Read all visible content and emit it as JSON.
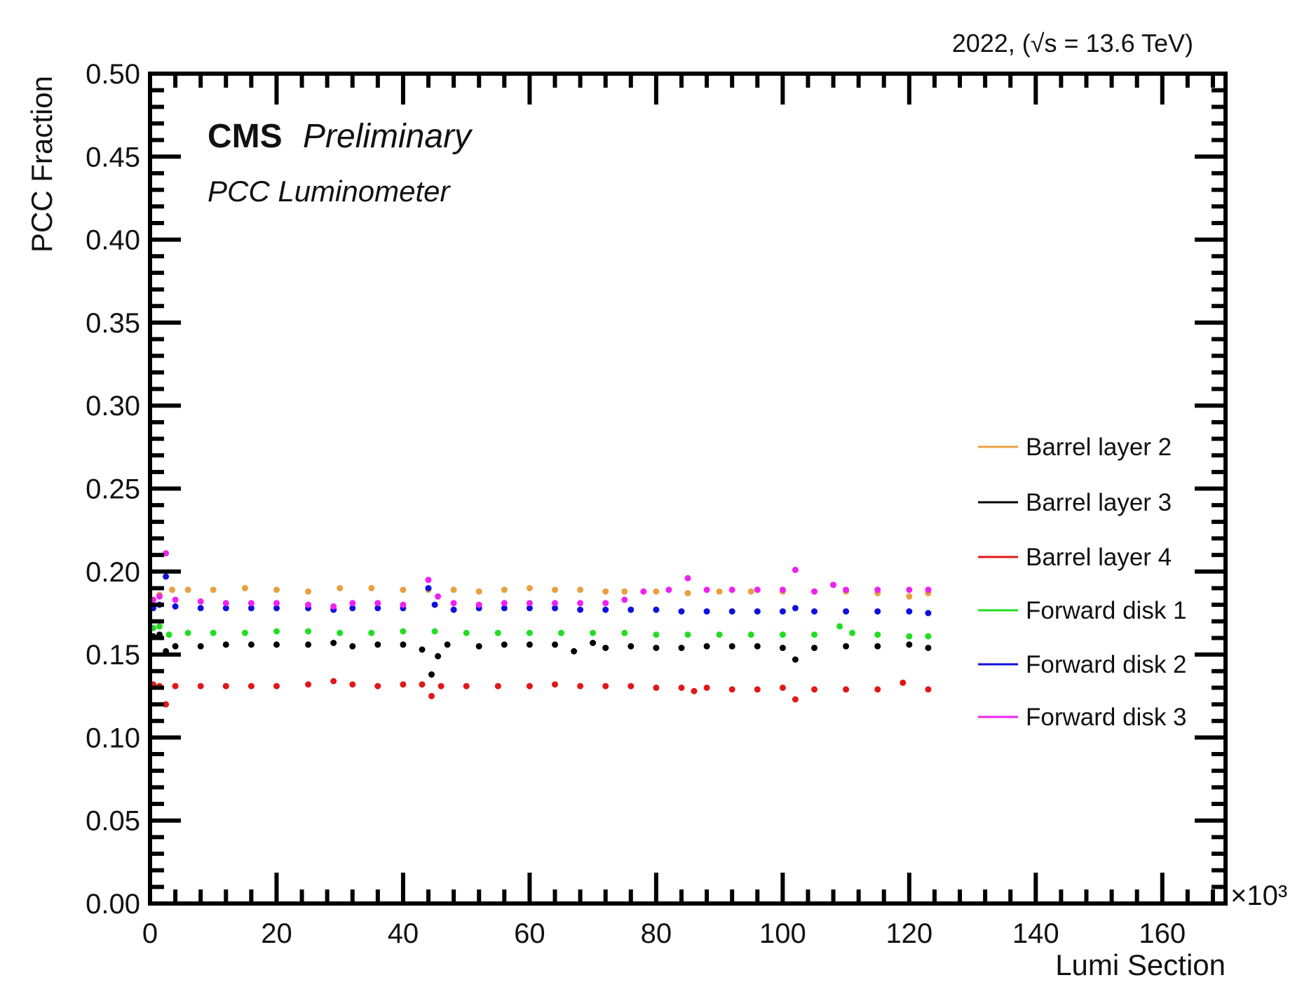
{
  "chart_data": {
    "type": "scatter",
    "energy_label": "2022, (√s = 13.6 TeV)",
    "experiment": "CMS",
    "status": "Preliminary",
    "subtitle": "PCC Luminometer",
    "xlabel": "Lumi Section",
    "ylabel": "PCC Fraction",
    "x_multiplier": "×10³",
    "xlim": [
      0,
      170
    ],
    "ylim": [
      0,
      0.5
    ],
    "x_ticks": [
      0,
      20,
      40,
      60,
      80,
      100,
      120,
      140,
      160
    ],
    "x_tick_labels": [
      "0",
      "20",
      "40",
      "60",
      "80",
      "100",
      "120",
      "140",
      "160"
    ],
    "y_ticks": [
      0,
      0.05,
      0.1,
      0.15,
      0.2,
      0.25,
      0.3,
      0.35,
      0.4,
      0.45,
      0.5
    ],
    "y_tick_labels": [
      "0.00",
      "0.05",
      "0.10",
      "0.15",
      "0.20",
      "0.25",
      "0.30",
      "0.35",
      "0.40",
      "0.45",
      "0.50"
    ],
    "grid": false,
    "legend_position": "right",
    "series": [
      {
        "name": "Barrel layer 2",
        "color": "#e8a040",
        "points": [
          [
            0.5,
            0.183
          ],
          [
            1.5,
            0.186
          ],
          [
            3.5,
            0.189
          ],
          [
            6,
            0.189
          ],
          [
            10,
            0.189
          ],
          [
            15,
            0.19
          ],
          [
            20,
            0.189
          ],
          [
            25,
            0.188
          ],
          [
            30,
            0.19
          ],
          [
            35,
            0.19
          ],
          [
            40,
            0.189
          ],
          [
            44,
            0.189
          ],
          [
            48,
            0.189
          ],
          [
            52,
            0.188
          ],
          [
            56,
            0.189
          ],
          [
            60,
            0.19
          ],
          [
            64,
            0.189
          ],
          [
            68,
            0.189
          ],
          [
            72,
            0.188
          ],
          [
            75,
            0.188
          ],
          [
            80,
            0.188
          ],
          [
            85,
            0.187
          ],
          [
            90,
            0.188
          ],
          [
            95,
            0.188
          ],
          [
            100,
            0.188
          ],
          [
            105,
            0.188
          ],
          [
            110,
            0.188
          ],
          [
            115,
            0.187
          ],
          [
            120,
            0.185
          ],
          [
            123,
            0.187
          ]
        ]
      },
      {
        "name": "Barrel layer 3",
        "color": "#000000",
        "points": [
          [
            0.5,
            0.161
          ],
          [
            1.5,
            0.162
          ],
          [
            2.5,
            0.152
          ],
          [
            4,
            0.155
          ],
          [
            8,
            0.155
          ],
          [
            12,
            0.156
          ],
          [
            16,
            0.156
          ],
          [
            20,
            0.156
          ],
          [
            25,
            0.156
          ],
          [
            29,
            0.157
          ],
          [
            32,
            0.155
          ],
          [
            36,
            0.156
          ],
          [
            40,
            0.156
          ],
          [
            43,
            0.153
          ],
          [
            44.5,
            0.138
          ],
          [
            45.5,
            0.149
          ],
          [
            47,
            0.156
          ],
          [
            52,
            0.155
          ],
          [
            56,
            0.156
          ],
          [
            60,
            0.156
          ],
          [
            64,
            0.156
          ],
          [
            67,
            0.152
          ],
          [
            70,
            0.157
          ],
          [
            72,
            0.154
          ],
          [
            76,
            0.155
          ],
          [
            80,
            0.154
          ],
          [
            84,
            0.154
          ],
          [
            88,
            0.155
          ],
          [
            92,
            0.155
          ],
          [
            96,
            0.155
          ],
          [
            100,
            0.154
          ],
          [
            102,
            0.147
          ],
          [
            105,
            0.154
          ],
          [
            110,
            0.155
          ],
          [
            115,
            0.155
          ],
          [
            120,
            0.156
          ],
          [
            123,
            0.154
          ]
        ]
      },
      {
        "name": "Barrel layer 4",
        "color": "#e01818",
        "points": [
          [
            0.5,
            0.132
          ],
          [
            1.5,
            0.131
          ],
          [
            2.5,
            0.12
          ],
          [
            4,
            0.131
          ],
          [
            8,
            0.131
          ],
          [
            12,
            0.131
          ],
          [
            16,
            0.131
          ],
          [
            20,
            0.131
          ],
          [
            25,
            0.132
          ],
          [
            29,
            0.134
          ],
          [
            32,
            0.132
          ],
          [
            36,
            0.131
          ],
          [
            40,
            0.132
          ],
          [
            43,
            0.132
          ],
          [
            44.5,
            0.125
          ],
          [
            46,
            0.131
          ],
          [
            50,
            0.131
          ],
          [
            55,
            0.131
          ],
          [
            60,
            0.131
          ],
          [
            64,
            0.132
          ],
          [
            68,
            0.131
          ],
          [
            72,
            0.131
          ],
          [
            76,
            0.131
          ],
          [
            80,
            0.13
          ],
          [
            84,
            0.13
          ],
          [
            86,
            0.128
          ],
          [
            88,
            0.13
          ],
          [
            92,
            0.129
          ],
          [
            96,
            0.129
          ],
          [
            100,
            0.13
          ],
          [
            102,
            0.123
          ],
          [
            105,
            0.129
          ],
          [
            110,
            0.129
          ],
          [
            115,
            0.129
          ],
          [
            119,
            0.133
          ],
          [
            123,
            0.129
          ]
        ]
      },
      {
        "name": "Forward disk 1",
        "color": "#22dd22",
        "points": [
          [
            0.5,
            0.166
          ],
          [
            1.5,
            0.167
          ],
          [
            3,
            0.162
          ],
          [
            6,
            0.163
          ],
          [
            10,
            0.163
          ],
          [
            15,
            0.163
          ],
          [
            20,
            0.164
          ],
          [
            25,
            0.164
          ],
          [
            30,
            0.163
          ],
          [
            35,
            0.163
          ],
          [
            40,
            0.164
          ],
          [
            45,
            0.164
          ],
          [
            50,
            0.163
          ],
          [
            55,
            0.163
          ],
          [
            60,
            0.163
          ],
          [
            65,
            0.163
          ],
          [
            70,
            0.163
          ],
          [
            75,
            0.163
          ],
          [
            80,
            0.162
          ],
          [
            85,
            0.162
          ],
          [
            90,
            0.162
          ],
          [
            95,
            0.162
          ],
          [
            100,
            0.162
          ],
          [
            105,
            0.162
          ],
          [
            109,
            0.167
          ],
          [
            111,
            0.163
          ],
          [
            115,
            0.162
          ],
          [
            120,
            0.161
          ],
          [
            123,
            0.161
          ]
        ]
      },
      {
        "name": "Forward disk 2",
        "color": "#1010dd",
        "points": [
          [
            0.5,
            0.178
          ],
          [
            1.5,
            0.18
          ],
          [
            2.5,
            0.197
          ],
          [
            4,
            0.179
          ],
          [
            8,
            0.178
          ],
          [
            12,
            0.178
          ],
          [
            16,
            0.178
          ],
          [
            20,
            0.178
          ],
          [
            25,
            0.178
          ],
          [
            29,
            0.177
          ],
          [
            32,
            0.178
          ],
          [
            36,
            0.178
          ],
          [
            40,
            0.178
          ],
          [
            44,
            0.19
          ],
          [
            45,
            0.18
          ],
          [
            48,
            0.177
          ],
          [
            52,
            0.178
          ],
          [
            56,
            0.178
          ],
          [
            60,
            0.178
          ],
          [
            64,
            0.178
          ],
          [
            68,
            0.177
          ],
          [
            72,
            0.177
          ],
          [
            76,
            0.177
          ],
          [
            80,
            0.177
          ],
          [
            84,
            0.176
          ],
          [
            88,
            0.176
          ],
          [
            92,
            0.176
          ],
          [
            96,
            0.176
          ],
          [
            100,
            0.176
          ],
          [
            102,
            0.178
          ],
          [
            105,
            0.176
          ],
          [
            110,
            0.176
          ],
          [
            115,
            0.176
          ],
          [
            120,
            0.176
          ],
          [
            123,
            0.175
          ]
        ]
      },
      {
        "name": "Forward disk 3",
        "color": "#ee22ee",
        "points": [
          [
            0.5,
            0.183
          ],
          [
            1.5,
            0.185
          ],
          [
            2.5,
            0.211
          ],
          [
            4,
            0.183
          ],
          [
            8,
            0.182
          ],
          [
            12,
            0.181
          ],
          [
            16,
            0.181
          ],
          [
            20,
            0.181
          ],
          [
            25,
            0.18
          ],
          [
            29,
            0.179
          ],
          [
            32,
            0.181
          ],
          [
            36,
            0.181
          ],
          [
            40,
            0.18
          ],
          [
            44,
            0.195
          ],
          [
            45.5,
            0.185
          ],
          [
            48,
            0.181
          ],
          [
            52,
            0.18
          ],
          [
            56,
            0.181
          ],
          [
            60,
            0.181
          ],
          [
            64,
            0.181
          ],
          [
            68,
            0.181
          ],
          [
            72,
            0.181
          ],
          [
            75,
            0.183
          ],
          [
            78,
            0.188
          ],
          [
            82,
            0.189
          ],
          [
            85,
            0.196
          ],
          [
            88,
            0.189
          ],
          [
            92,
            0.189
          ],
          [
            96,
            0.189
          ],
          [
            100,
            0.189
          ],
          [
            102,
            0.201
          ],
          [
            105,
            0.188
          ],
          [
            108,
            0.192
          ],
          [
            110,
            0.189
          ],
          [
            115,
            0.189
          ],
          [
            120,
            0.189
          ],
          [
            123,
            0.189
          ]
        ]
      }
    ]
  }
}
